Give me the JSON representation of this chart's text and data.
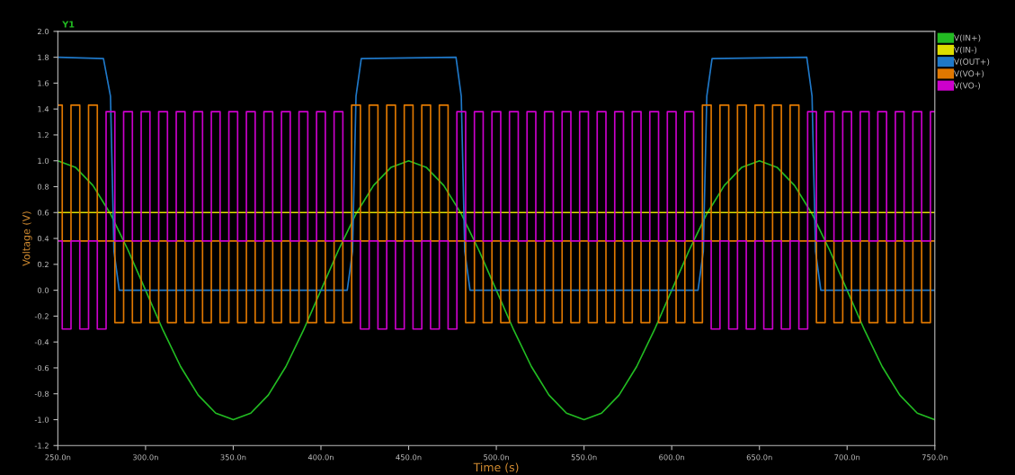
{
  "chart_data": {
    "type": "line",
    "xlabel": "Time (s)",
    "ylabel": "Voltage (V)",
    "annotations": [
      "Y1"
    ],
    "xlim": [
      250,
      750
    ],
    "xticks": [
      {
        "value": 250,
        "label": "250.0n"
      },
      {
        "value": 300,
        "label": "300.0n"
      },
      {
        "value": 350,
        "label": "350.0n"
      },
      {
        "value": 400,
        "label": "400.0n"
      },
      {
        "value": 450,
        "label": "450.0n"
      },
      {
        "value": 500,
        "label": "500.0n"
      },
      {
        "value": 550,
        "label": "550.0n"
      },
      {
        "value": 600,
        "label": "600.0n"
      },
      {
        "value": 650,
        "label": "650.0n"
      },
      {
        "value": 700,
        "label": "700.0n"
      },
      {
        "value": 750,
        "label": "750.0n"
      }
    ],
    "ylim": [
      -1.2,
      2.0
    ],
    "yticks": [
      {
        "value": -1.2,
        "label": "-1.2"
      },
      {
        "value": -1.0,
        "label": "-1.0"
      },
      {
        "value": -0.8,
        "label": "-0.8"
      },
      {
        "value": -0.6,
        "label": "-0.6"
      },
      {
        "value": -0.4,
        "label": "-0.4"
      },
      {
        "value": -0.2,
        "label": "-0.2"
      },
      {
        "value": 0,
        "label": "0.0"
      },
      {
        "value": 0.2,
        "label": "0.2"
      },
      {
        "value": 0.4,
        "label": "0.4"
      },
      {
        "value": 0.6,
        "label": "0.6"
      },
      {
        "value": 0.8,
        "label": "0.8"
      },
      {
        "value": 1.0,
        "label": "1.0"
      },
      {
        "value": 1.2,
        "label": "1.2"
      },
      {
        "value": 1.4,
        "label": "1.4"
      },
      {
        "value": 1.6,
        "label": "1.6"
      },
      {
        "value": 1.8,
        "label": "1.8"
      },
      {
        "value": 2.0,
        "label": "2.0"
      }
    ],
    "grid": false,
    "legend": "top right",
    "marker": "none",
    "line_style": "solid",
    "series": [
      {
        "name": "V(IN+)",
        "color": "#22bb22",
        "x": [
          250,
          260,
          270,
          280,
          290,
          300,
          310,
          320,
          330,
          340,
          350,
          360,
          370,
          380,
          390,
          400,
          410,
          420,
          430,
          440,
          450,
          460,
          470,
          480,
          490,
          500,
          510,
          520,
          530,
          540,
          550,
          560,
          570,
          580,
          590,
          600,
          610,
          620,
          630,
          640,
          650,
          660,
          670,
          680,
          690,
          700,
          710,
          720,
          730,
          740,
          750
        ],
        "values": [
          1.0,
          0.95,
          0.81,
          0.59,
          0.31,
          0.0,
          -0.31,
          -0.59,
          -0.81,
          -0.95,
          -1.0,
          -0.95,
          -0.81,
          -0.59,
          -0.31,
          0.0,
          0.31,
          0.59,
          0.81,
          0.95,
          1.0,
          0.95,
          0.81,
          0.59,
          0.31,
          0.0,
          -0.31,
          -0.59,
          -0.81,
          -0.95,
          -1.0,
          -0.95,
          -0.81,
          -0.59,
          -0.31,
          0.0,
          0.31,
          0.59,
          0.81,
          0.95,
          1.0,
          0.95,
          0.81,
          0.59,
          0.31,
          0.0,
          -0.31,
          -0.59,
          -0.81,
          -0.95,
          -1.0
        ]
      },
      {
        "name": "V(IN-)",
        "color": "#dddd00",
        "x": [
          250,
          750
        ],
        "values": [
          0.6,
          0.6
        ]
      },
      {
        "name": "V(OUT+)",
        "color": "#1f78c8",
        "x": [
          250,
          276,
          280,
          282,
          285,
          415,
          418,
          420,
          423,
          477,
          480,
          482,
          485,
          615,
          618,
          620,
          623,
          677,
          680,
          682,
          685,
          750
        ],
        "values": [
          1.8,
          1.79,
          1.5,
          0.3,
          0.0,
          0.0,
          0.3,
          1.5,
          1.79,
          1.8,
          1.5,
          0.3,
          0.0,
          0.0,
          0.3,
          1.5,
          1.79,
          1.8,
          1.5,
          0.3,
          0.0,
          0.0
        ]
      },
      {
        "name": "V(VO+)",
        "color": "#e07800",
        "type": "step",
        "x": [
          250,
          255,
          260,
          265,
          270,
          275,
          280,
          285,
          290,
          295,
          300,
          305,
          310,
          315,
          320,
          325,
          330,
          335,
          340,
          345,
          350,
          355,
          360,
          365,
          370,
          375,
          380,
          385,
          390,
          395,
          400,
          405,
          410,
          415,
          420,
          425,
          430,
          435,
          440,
          445,
          450,
          455,
          460,
          465,
          470,
          475,
          480,
          485,
          490,
          495,
          500,
          505,
          510,
          515,
          520,
          525,
          530,
          535,
          540,
          545,
          550,
          555,
          560,
          565,
          570,
          575,
          580,
          585,
          590,
          595,
          600,
          605,
          610,
          615,
          620,
          625,
          630,
          635,
          640,
          645,
          650,
          655,
          660,
          665,
          670,
          675,
          680,
          685,
          690,
          695,
          700,
          705,
          710,
          715,
          720,
          725,
          730,
          735,
          740,
          745,
          750
        ],
        "values": [
          1.43,
          0.38,
          1.43,
          0.38,
          1.43,
          0.38,
          0.38,
          -0.25,
          0.38,
          -0.25,
          0.38,
          -0.25,
          0.38,
          -0.25,
          0.38,
          -0.25,
          0.38,
          -0.25,
          0.38,
          -0.25,
          0.38,
          -0.25,
          0.38,
          -0.25,
          0.38,
          -0.25,
          0.38,
          -0.25,
          0.38,
          -0.25,
          0.38,
          -0.25,
          0.38,
          -0.25,
          1.43,
          0.38,
          1.43,
          0.38,
          1.43,
          0.38,
          1.43,
          0.38,
          1.43,
          0.38,
          1.43,
          0.38,
          0.38,
          -0.25,
          0.38,
          -0.25,
          0.38,
          -0.25,
          0.38,
          -0.25,
          0.38,
          -0.25,
          0.38,
          -0.25,
          0.38,
          -0.25,
          0.38,
          -0.25,
          0.38,
          -0.25,
          0.38,
          -0.25,
          0.38,
          -0.25,
          0.38,
          -0.25,
          0.38,
          -0.25,
          0.38,
          -0.25,
          1.43,
          0.38,
          1.43,
          0.38,
          1.43,
          0.38,
          1.43,
          0.38,
          1.43,
          0.38,
          1.43,
          0.38,
          0.38,
          -0.25,
          0.38,
          -0.25,
          0.38,
          -0.25,
          0.38,
          -0.25,
          0.38,
          -0.25,
          0.38,
          -0.25,
          0.38,
          -0.25,
          0.38
        ]
      },
      {
        "name": "V(VO-)",
        "color": "#cc00cc",
        "type": "step",
        "x": [
          250,
          255,
          260,
          265,
          270,
          275,
          280,
          285,
          290,
          295,
          300,
          305,
          310,
          315,
          320,
          325,
          330,
          335,
          340,
          345,
          350,
          355,
          360,
          365,
          370,
          375,
          380,
          385,
          390,
          395,
          400,
          405,
          410,
          415,
          420,
          425,
          430,
          435,
          440,
          445,
          450,
          455,
          460,
          465,
          470,
          475,
          480,
          485,
          490,
          495,
          500,
          505,
          510,
          515,
          520,
          525,
          530,
          535,
          540,
          545,
          550,
          555,
          560,
          565,
          570,
          575,
          580,
          585,
          590,
          595,
          600,
          605,
          610,
          615,
          620,
          625,
          630,
          635,
          640,
          645,
          650,
          655,
          660,
          665,
          670,
          675,
          680,
          685,
          690,
          695,
          700,
          705,
          710,
          715,
          720,
          725,
          730,
          735,
          740,
          745,
          750
        ],
        "values": [
          0.38,
          -0.3,
          0.38,
          -0.3,
          0.38,
          -0.3,
          1.38,
          0.38,
          1.38,
          0.38,
          1.38,
          0.38,
          1.38,
          0.38,
          1.38,
          0.38,
          1.38,
          0.38,
          1.38,
          0.38,
          1.38,
          0.38,
          1.38,
          0.38,
          1.38,
          0.38,
          1.38,
          0.38,
          1.38,
          0.38,
          1.38,
          0.38,
          1.38,
          0.38,
          0.38,
          -0.3,
          0.38,
          -0.3,
          0.38,
          -0.3,
          0.38,
          -0.3,
          0.38,
          -0.3,
          0.38,
          -0.3,
          1.38,
          0.38,
          1.38,
          0.38,
          1.38,
          0.38,
          1.38,
          0.38,
          1.38,
          0.38,
          1.38,
          0.38,
          1.38,
          0.38,
          1.38,
          0.38,
          1.38,
          0.38,
          1.38,
          0.38,
          1.38,
          0.38,
          1.38,
          0.38,
          1.38,
          0.38,
          1.38,
          0.38,
          0.38,
          -0.3,
          0.38,
          -0.3,
          0.38,
          -0.3,
          0.38,
          -0.3,
          0.38,
          -0.3,
          0.38,
          -0.3,
          1.38,
          0.38,
          1.38,
          0.38,
          1.38,
          0.38,
          1.38,
          0.38,
          1.38,
          0.38,
          1.38,
          0.38,
          1.38,
          0.38,
          1.38
        ]
      }
    ]
  }
}
